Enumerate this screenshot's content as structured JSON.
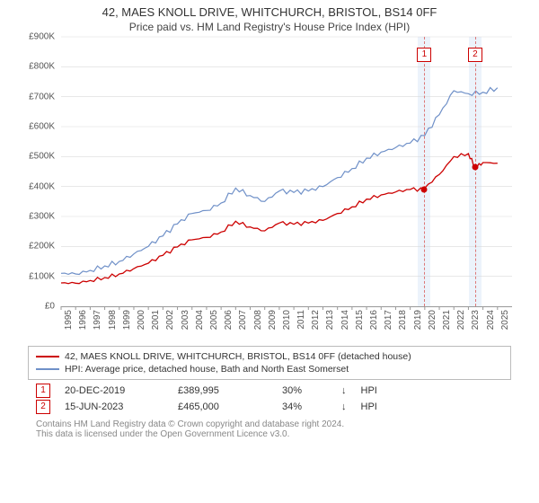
{
  "title": "42, MAES KNOLL DRIVE, WHITCHURCH, BRISTOL, BS14 0FF",
  "subtitle": "Price paid vs. HM Land Registry's House Price Index (HPI)",
  "chart": {
    "type": "line",
    "background_color": "#ffffff",
    "grid_color": "#d9d9d9",
    "axis_color": "#999999",
    "ylabel_prefix": "£",
    "ylim": [
      0,
      900000
    ],
    "ytick_step": 100000,
    "yticks": [
      "£0",
      "£100K",
      "£200K",
      "£300K",
      "£400K",
      "£500K",
      "£600K",
      "£700K",
      "£800K",
      "£900K"
    ],
    "xlim": [
      1995,
      2026
    ],
    "xticks": [
      1995,
      1996,
      1997,
      1998,
      1999,
      2000,
      2001,
      2002,
      2003,
      2004,
      2005,
      2006,
      2007,
      2008,
      2009,
      2010,
      2011,
      2012,
      2013,
      2014,
      2015,
      2016,
      2017,
      2018,
      2019,
      2020,
      2021,
      2022,
      2023,
      2024,
      2025
    ],
    "label_fontsize": 10,
    "series": [
      {
        "name": "hpi",
        "label": "HPI: Average price, detached house, Bath and North East Somerset",
        "color": "#6f90c8",
        "line_width": 1.2,
        "data": [
          [
            1995,
            110000
          ],
          [
            1996,
            108000
          ],
          [
            1997,
            120000
          ],
          [
            1998,
            135000
          ],
          [
            1999,
            150000
          ],
          [
            2000,
            175000
          ],
          [
            2001,
            200000
          ],
          [
            2002,
            235000
          ],
          [
            2003,
            275000
          ],
          [
            2004,
            310000
          ],
          [
            2005,
            320000
          ],
          [
            2006,
            345000
          ],
          [
            2007,
            395000
          ],
          [
            2008,
            370000
          ],
          [
            2009,
            350000
          ],
          [
            2010,
            385000
          ],
          [
            2011,
            380000
          ],
          [
            2012,
            385000
          ],
          [
            2013,
            400000
          ],
          [
            2014,
            430000
          ],
          [
            2015,
            460000
          ],
          [
            2016,
            495000
          ],
          [
            2017,
            515000
          ],
          [
            2018,
            530000
          ],
          [
            2019,
            545000
          ],
          [
            2020,
            570000
          ],
          [
            2021,
            640000
          ],
          [
            2022,
            720000
          ],
          [
            2023,
            710000
          ],
          [
            2024,
            715000
          ],
          [
            2025,
            730000
          ]
        ]
      },
      {
        "name": "price_paid",
        "label": "42, MAES KNOLL DRIVE, WHITCHURCH, BRISTOL, BS14 0FF (detached house)",
        "color": "#cc0000",
        "line_width": 1.3,
        "data": [
          [
            1995,
            78000
          ],
          [
            1996,
            77000
          ],
          [
            1997,
            86000
          ],
          [
            1998,
            96000
          ],
          [
            1999,
            108000
          ],
          [
            2000,
            126000
          ],
          [
            2001,
            144000
          ],
          [
            2002,
            170000
          ],
          [
            2003,
            198000
          ],
          [
            2004,
            222000
          ],
          [
            2005,
            230000
          ],
          [
            2006,
            248000
          ],
          [
            2007,
            284000
          ],
          [
            2008,
            265000
          ],
          [
            2009,
            252000
          ],
          [
            2010,
            278000
          ],
          [
            2011,
            274000
          ],
          [
            2012,
            278000
          ],
          [
            2013,
            287000
          ],
          [
            2014,
            310000
          ],
          [
            2015,
            332000
          ],
          [
            2016,
            358000
          ],
          [
            2017,
            372000
          ],
          [
            2018,
            382000
          ],
          [
            2019,
            390000
          ],
          [
            2019.97,
            389995
          ],
          [
            2020,
            395000
          ],
          [
            2021,
            440000
          ],
          [
            2022,
            500000
          ],
          [
            2023,
            510000
          ],
          [
            2023.46,
            465000
          ],
          [
            2024,
            480000
          ],
          [
            2025,
            478000
          ]
        ]
      }
    ],
    "sale_bands": [
      {
        "num": "1",
        "x": 2019.97,
        "band_color": "#eaf2fb",
        "line_color": "#d77"
      },
      {
        "num": "2",
        "x": 2023.46,
        "band_color": "#eaf2fb",
        "line_color": "#d77"
      }
    ],
    "sale_points": [
      {
        "x": 2019.97,
        "y": 389995,
        "color": "#cc0000"
      },
      {
        "x": 2023.46,
        "y": 465000,
        "color": "#cc0000"
      }
    ]
  },
  "legend": {
    "items": [
      {
        "color": "#cc0000",
        "label": "42, MAES KNOLL DRIVE, WHITCHURCH, BRISTOL, BS14 0FF (detached house)"
      },
      {
        "color": "#6f90c8",
        "label": "HPI: Average price, detached house, Bath and North East Somerset"
      }
    ]
  },
  "sales": [
    {
      "num": "1",
      "date": "20-DEC-2019",
      "price": "£389,995",
      "pct": "30%",
      "arrow": "↓",
      "vs": "HPI"
    },
    {
      "num": "2",
      "date": "15-JUN-2023",
      "price": "£465,000",
      "pct": "34%",
      "arrow": "↓",
      "vs": "HPI"
    }
  ],
  "footer": {
    "line1": "Contains HM Land Registry data © Crown copyright and database right 2024.",
    "line2": "This data is licensed under the Open Government Licence v3.0."
  }
}
